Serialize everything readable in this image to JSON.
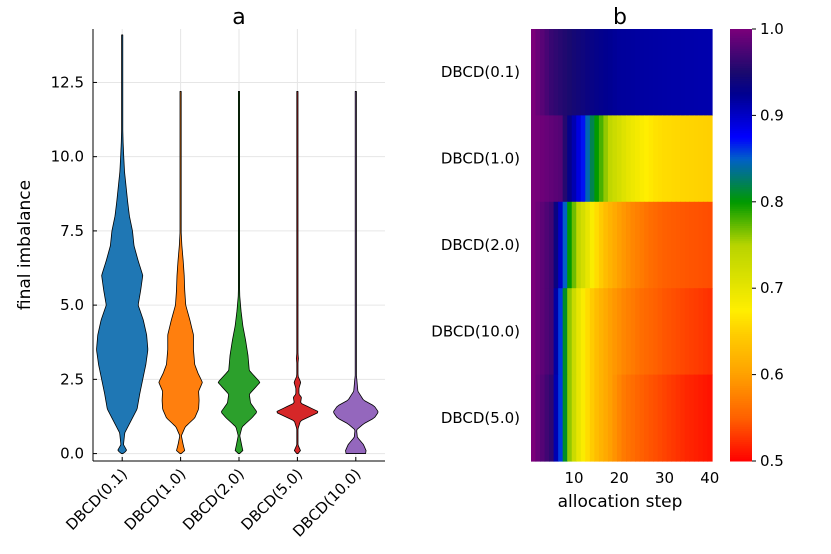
{
  "chart_data": [
    {
      "type": "violin",
      "title": "a",
      "xlabel": "",
      "ylabel": "final imbalance",
      "ylim": [
        -0.25,
        14.3
      ],
      "yticks": [
        "0.0",
        "2.5",
        "5.0",
        "7.5",
        "10.0",
        "12.5"
      ],
      "ytick_values": [
        0,
        2.5,
        5,
        7.5,
        10,
        12.5
      ],
      "grid": true,
      "categories": [
        "DBCD(0.1)",
        "DBCD(1.0)",
        "DBCD(2.0)",
        "DBCD(5.0)",
        "DBCD(10.0)"
      ],
      "series": [
        {
          "name": "DBCD(0.1)",
          "color": "#1f77b4",
          "min": 0.0,
          "max": 14.1,
          "profile": [
            [
              0,
              0.03
            ],
            [
              0.1,
              0.18
            ],
            [
              0.3,
              0.05
            ],
            [
              0.7,
              0.1
            ],
            [
              1.0,
              0.28
            ],
            [
              1.5,
              0.58
            ],
            [
              2.0,
              0.68
            ],
            [
              2.5,
              0.8
            ],
            [
              3.0,
              0.92
            ],
            [
              3.5,
              1.0
            ],
            [
              4.0,
              0.95
            ],
            [
              4.5,
              0.82
            ],
            [
              5.0,
              0.62
            ],
            [
              5.5,
              0.72
            ],
            [
              6.0,
              0.8
            ],
            [
              6.5,
              0.62
            ],
            [
              7.0,
              0.46
            ],
            [
              7.5,
              0.4
            ],
            [
              8.0,
              0.28
            ],
            [
              8.5,
              0.21
            ],
            [
              9.0,
              0.15
            ],
            [
              9.5,
              0.09
            ],
            [
              10.0,
              0.06
            ],
            [
              10.5,
              0.035
            ],
            [
              11.0,
              0.02
            ],
            [
              12.0,
              0.01
            ],
            [
              14.1,
              0.003
            ]
          ]
        },
        {
          "name": "DBCD(1.0)",
          "color": "#ff7f0e",
          "min": 0.0,
          "max": 12.2,
          "profile": [
            [
              0,
              0.02
            ],
            [
              0.1,
              0.16
            ],
            [
              0.3,
              0.1
            ],
            [
              0.6,
              0.03
            ],
            [
              0.9,
              0.18
            ],
            [
              1.2,
              0.55
            ],
            [
              1.5,
              0.7
            ],
            [
              1.8,
              0.72
            ],
            [
              2.1,
              0.7
            ],
            [
              2.4,
              0.85
            ],
            [
              2.7,
              0.68
            ],
            [
              3.0,
              0.55
            ],
            [
              3.5,
              0.5
            ],
            [
              4.0,
              0.5
            ],
            [
              4.5,
              0.36
            ],
            [
              5.0,
              0.2
            ],
            [
              5.5,
              0.16
            ],
            [
              6.0,
              0.14
            ],
            [
              6.5,
              0.1
            ],
            [
              7.0,
              0.05
            ],
            [
              7.5,
              0.02
            ],
            [
              8.5,
              0.008
            ],
            [
              12.2,
              0.003
            ]
          ]
        },
        {
          "name": "DBCD(2.0)",
          "color": "#2ca02c",
          "min": 0.0,
          "max": 12.2,
          "profile": [
            [
              0,
              0.02
            ],
            [
              0.1,
              0.15
            ],
            [
              0.3,
              0.1
            ],
            [
              0.6,
              0.03
            ],
            [
              0.9,
              0.12
            ],
            [
              1.2,
              0.5
            ],
            [
              1.4,
              0.7
            ],
            [
              1.7,
              0.45
            ],
            [
              2.0,
              0.4
            ],
            [
              2.4,
              0.82
            ],
            [
              2.8,
              0.4
            ],
            [
              3.3,
              0.35
            ],
            [
              3.8,
              0.26
            ],
            [
              4.3,
              0.15
            ],
            [
              4.8,
              0.08
            ],
            [
              5.3,
              0.03
            ],
            [
              6.0,
              0.01
            ],
            [
              12.2,
              0.003
            ]
          ]
        },
        {
          "name": "DBCD(5.0)",
          "color": "#d62728",
          "min": 0.0,
          "max": 12.2,
          "profile": [
            [
              0,
              0.02
            ],
            [
              0.1,
              0.12
            ],
            [
              0.3,
              0.02
            ],
            [
              0.8,
              0.01
            ],
            [
              1.1,
              0.12
            ],
            [
              1.4,
              0.85
            ],
            [
              1.7,
              0.12
            ],
            [
              1.9,
              0.16
            ],
            [
              2.0,
              0.06
            ],
            [
              2.2,
              0.06
            ],
            [
              2.4,
              0.13
            ],
            [
              2.6,
              0.03
            ],
            [
              2.9,
              0.005
            ],
            [
              3.2,
              0.04
            ],
            [
              3.5,
              0.01
            ],
            [
              3.8,
              0.003
            ],
            [
              12.2,
              0.003
            ]
          ]
        },
        {
          "name": "DBCD(10.0)",
          "color": "#9467bd",
          "min": 0.0,
          "max": 12.2,
          "profile": [
            [
              0,
              0.38
            ],
            [
              0.1,
              0.4
            ],
            [
              0.3,
              0.3
            ],
            [
              0.55,
              0.06
            ],
            [
              0.8,
              0.03
            ],
            [
              1.0,
              0.3
            ],
            [
              1.2,
              0.72
            ],
            [
              1.4,
              0.88
            ],
            [
              1.6,
              0.72
            ],
            [
              1.8,
              0.3
            ],
            [
              2.1,
              0.08
            ],
            [
              2.3,
              0.06
            ],
            [
              2.5,
              0.04
            ],
            [
              2.7,
              0.01
            ],
            [
              12.2,
              0.003
            ]
          ]
        }
      ]
    },
    {
      "type": "heatmap",
      "title": "b",
      "xlabel": "allocation step",
      "ylabel": "",
      "xlim": [
        1,
        40
      ],
      "xticks": [
        "10",
        "20",
        "30",
        "40"
      ],
      "xtick_values": [
        10,
        20,
        30,
        40
      ],
      "rows": [
        "DBCD(0.1)",
        "DBCD(1.0)",
        "DBCD(2.0)",
        "DBCD(10.0)",
        "DBCD(5.0)"
      ],
      "steps": 40,
      "clim": [
        0.5,
        1.0
      ],
      "colorbar_ticks": [
        "0.5",
        "0.6",
        "0.7",
        "0.8",
        "0.9",
        "1.0"
      ],
      "colorbar_tick_values": [
        0.5,
        0.6,
        0.7,
        0.8,
        0.9,
        1.0
      ],
      "colormap": [
        [
          0.0,
          "#ff0000"
        ],
        [
          0.1,
          "#ff6000"
        ],
        [
          0.2,
          "#ffa000"
        ],
        [
          0.3,
          "#ffd000"
        ],
        [
          0.35,
          "#ffee00"
        ],
        [
          0.5,
          "#b8d400"
        ],
        [
          0.6,
          "#009a00"
        ],
        [
          0.7,
          "#0060c8"
        ],
        [
          0.75,
          "#0000ff"
        ],
        [
          0.85,
          "#000090"
        ],
        [
          0.9,
          "#1a0a6e"
        ],
        [
          1.0,
          "#7a007a"
        ]
      ],
      "row_profiles": [
        [
          [
            1,
            1.0
          ],
          [
            5,
            0.965
          ],
          [
            10,
            0.945
          ],
          [
            15,
            0.93
          ],
          [
            20,
            0.92
          ],
          [
            30,
            0.915
          ],
          [
            40,
            0.912
          ]
        ],
        [
          [
            1,
            1.0
          ],
          [
            7,
            0.98
          ],
          [
            9,
            0.93
          ],
          [
            10,
            0.91
          ],
          [
            12,
            0.87
          ],
          [
            14,
            0.82
          ],
          [
            16,
            0.78
          ],
          [
            18,
            0.74
          ],
          [
            20,
            0.72
          ],
          [
            22,
            0.7
          ],
          [
            25,
            0.68
          ],
          [
            28,
            0.665
          ],
          [
            30,
            0.66
          ],
          [
            34,
            0.655
          ],
          [
            40,
            0.65
          ]
        ],
        [
          [
            1,
            1.0
          ],
          [
            5,
            0.97
          ],
          [
            7,
            0.9
          ],
          [
            9,
            0.8
          ],
          [
            11,
            0.74
          ],
          [
            13,
            0.7
          ],
          [
            15,
            0.66
          ],
          [
            17,
            0.63
          ],
          [
            20,
            0.6
          ],
          [
            23,
            0.58
          ],
          [
            27,
            0.56
          ],
          [
            30,
            0.55
          ],
          [
            35,
            0.545
          ],
          [
            40,
            0.54
          ]
        ],
        [
          [
            1,
            1.0
          ],
          [
            5,
            0.97
          ],
          [
            7,
            0.86
          ],
          [
            9,
            0.76
          ],
          [
            11,
            0.7
          ],
          [
            13,
            0.66
          ],
          [
            15,
            0.63
          ],
          [
            18,
            0.6
          ],
          [
            21,
            0.58
          ],
          [
            25,
            0.56
          ],
          [
            30,
            0.545
          ],
          [
            35,
            0.535
          ],
          [
            40,
            0.525
          ]
        ],
        [
          [
            1,
            1.0
          ],
          [
            5,
            0.96
          ],
          [
            7,
            0.86
          ],
          [
            9,
            0.76
          ],
          [
            11,
            0.7
          ],
          [
            13,
            0.66
          ],
          [
            15,
            0.63
          ],
          [
            18,
            0.6
          ],
          [
            21,
            0.57
          ],
          [
            25,
            0.55
          ],
          [
            30,
            0.535
          ],
          [
            35,
            0.52
          ],
          [
            40,
            0.51
          ]
        ]
      ]
    }
  ]
}
